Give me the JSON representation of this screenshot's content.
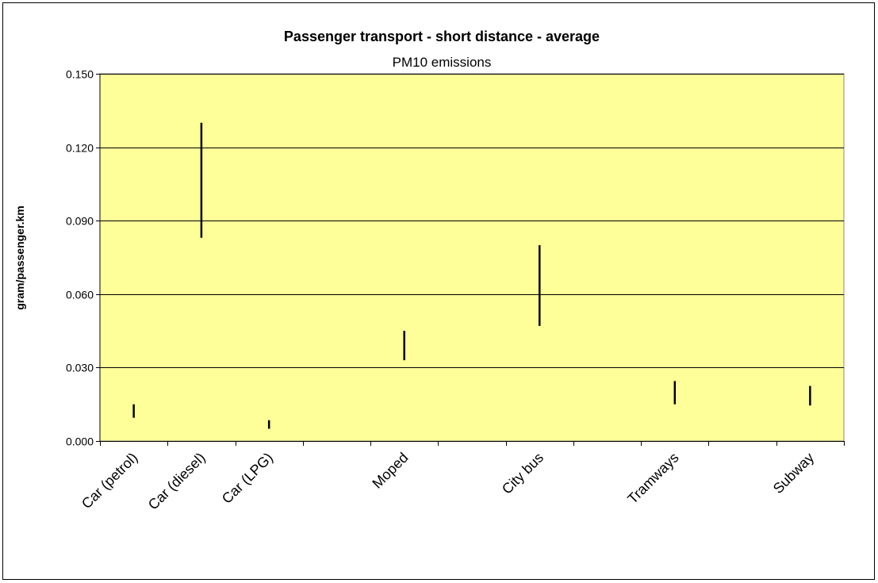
{
  "chart_data": {
    "type": "range",
    "title": "Passenger transport - short distance - average",
    "subtitle": "PM10 emissions",
    "xlabel": "",
    "ylabel": "gram/passenger.km",
    "ylim": [
      0,
      0.15
    ],
    "yticks": [
      "0.000",
      "0.030",
      "0.060",
      "0.090",
      "0.120",
      "0.150"
    ],
    "ytick_values": [
      0,
      0.03,
      0.06,
      0.09,
      0.12,
      0.15
    ],
    "categories": [
      "Car (petrol)",
      "Car (diesel)",
      "Car (LPG)",
      "",
      "Moped",
      "",
      "City bus",
      "",
      "Tramways",
      "",
      "Subway"
    ],
    "series": [
      {
        "low": 0.0095,
        "high": 0.015,
        "mid": 0.012
      },
      {
        "low": 0.083,
        "high": 0.13,
        "mid": 0.107
      },
      {
        "low": 0.005,
        "high": 0.0085,
        "mid": 0.007
      },
      null,
      {
        "low": 0.033,
        "high": 0.045,
        "mid": 0.039
      },
      null,
      {
        "low": 0.047,
        "high": 0.08,
        "mid": 0.063
      },
      null,
      {
        "low": 0.015,
        "high": 0.0245,
        "mid": 0.02
      },
      null,
      {
        "low": 0.0145,
        "high": 0.0225,
        "mid": 0.018
      }
    ],
    "grid": true,
    "legend": "none",
    "colors": {
      "plot_bg": "#ffff99",
      "marks": "#000000",
      "grid": "#000000"
    }
  }
}
